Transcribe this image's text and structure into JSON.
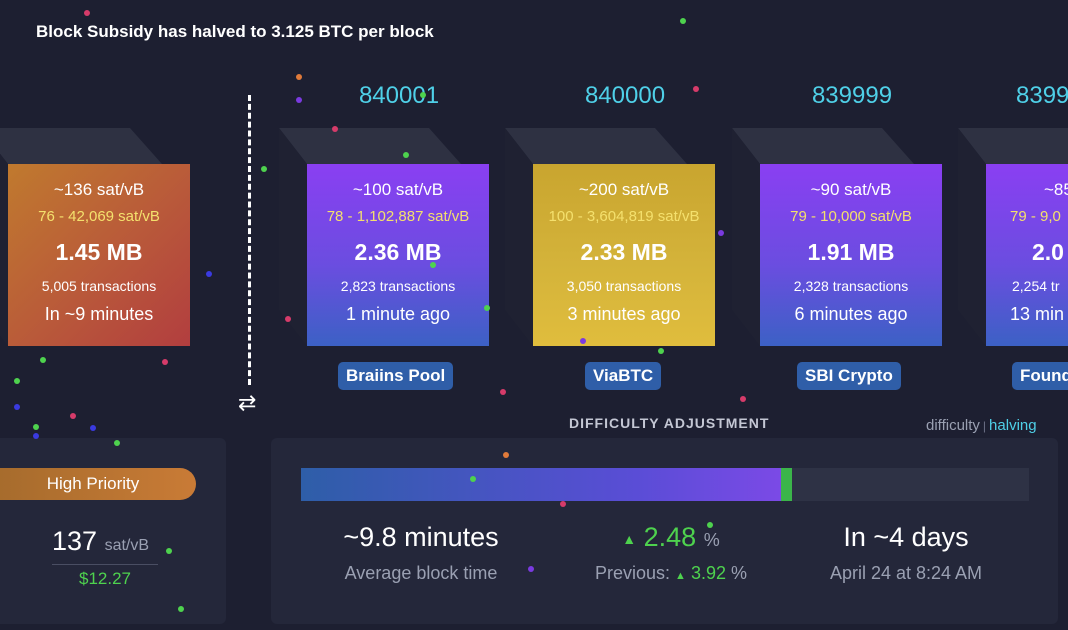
{
  "banner": "Block Subsidy has halved to 3.125 BTC per block",
  "mempool_block": {
    "fee": "~136 sat/vB",
    "range": "76 - 42,069 sat/vB",
    "size": "1.45 MB",
    "txs": "5,005 transactions",
    "time": "In ~9 minutes"
  },
  "blocks": [
    {
      "height": "840001",
      "fee": "~100 sat/vB",
      "range": "78 - 1,102,887 sat/vB",
      "size": "2.36 MB",
      "txs": "2,823 transactions",
      "time": "1 minute ago",
      "pool": "Braiins Pool"
    },
    {
      "height": "840000",
      "fee": "~200 sat/vB",
      "range": "100 - 3,604,819 sat/vB",
      "size": "2.33 MB",
      "txs": "3,050 transactions",
      "time": "3 minutes ago",
      "pool": "ViaBTC"
    },
    {
      "height": "839999",
      "fee": "~90 sat/vB",
      "range": "79 - 10,000 sat/vB",
      "size": "1.91 MB",
      "txs": "2,328 transactions",
      "time": "6 minutes ago",
      "pool": "SBI Crypto"
    },
    {
      "height": "8399",
      "fee": "~85",
      "range": "79 - 9,0",
      "size": "2.0",
      "txs": "2,254 tr",
      "time": "13 min",
      "pool": "Found"
    }
  ],
  "swap_icon": "⇄",
  "fees": {
    "priority_label": "High Priority",
    "rate": "137",
    "unit": "sat/vB",
    "usd": "$12.27"
  },
  "difficulty": {
    "title": "DIFFICULTY ADJUSTMENT",
    "toggle_difficulty": "difficulty",
    "toggle_sep": "|",
    "toggle_halving": "halving",
    "progress_percent": 66,
    "avg_block_time": "~9.8 minutes",
    "avg_block_time_label": "Average block time",
    "change_arrow": "▲",
    "change": "2.48",
    "change_unit": "%",
    "previous_label": "Previous:",
    "previous_arrow": "▲",
    "previous": "3.92",
    "previous_unit": "%",
    "eta": "In ~4 days",
    "eta_date": "April 24 at 8:24 AM"
  },
  "colors": {
    "accent": "#4fd0e8",
    "purple_block": "#8a3ff2",
    "gold_block": "#d4b33a",
    "pool_badge": "#2f5ea8",
    "positive": "#4ed24e"
  }
}
